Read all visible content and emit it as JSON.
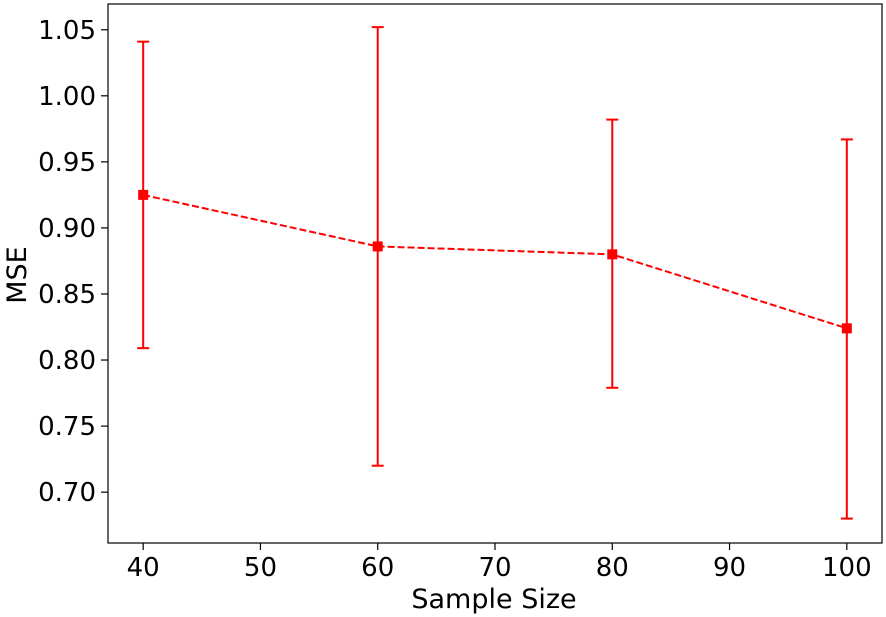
{
  "chart_data": {
    "type": "line",
    "title": "",
    "xlabel": "Sample Size",
    "ylabel": "MSE",
    "xlim": [
      37,
      103
    ],
    "ylim": [
      0.6615,
      1.0695
    ],
    "xticks": [
      40,
      50,
      60,
      70,
      80,
      90,
      100
    ],
    "yticks": [
      0.7,
      0.75,
      0.8,
      0.85,
      0.9,
      0.95,
      1.0,
      1.05
    ],
    "ytick_format": 2,
    "grid": false,
    "legend": "none",
    "series": [
      {
        "color": "#ff0000",
        "line_style": "dashed",
        "marker": "square",
        "x": [
          40,
          60,
          80,
          100
        ],
        "y": [
          0.925,
          0.886,
          0.88,
          0.824
        ],
        "error_low": [
          0.809,
          0.72,
          0.779,
          0.68
        ],
        "error_high": [
          1.041,
          1.052,
          0.982,
          0.967
        ]
      }
    ]
  }
}
